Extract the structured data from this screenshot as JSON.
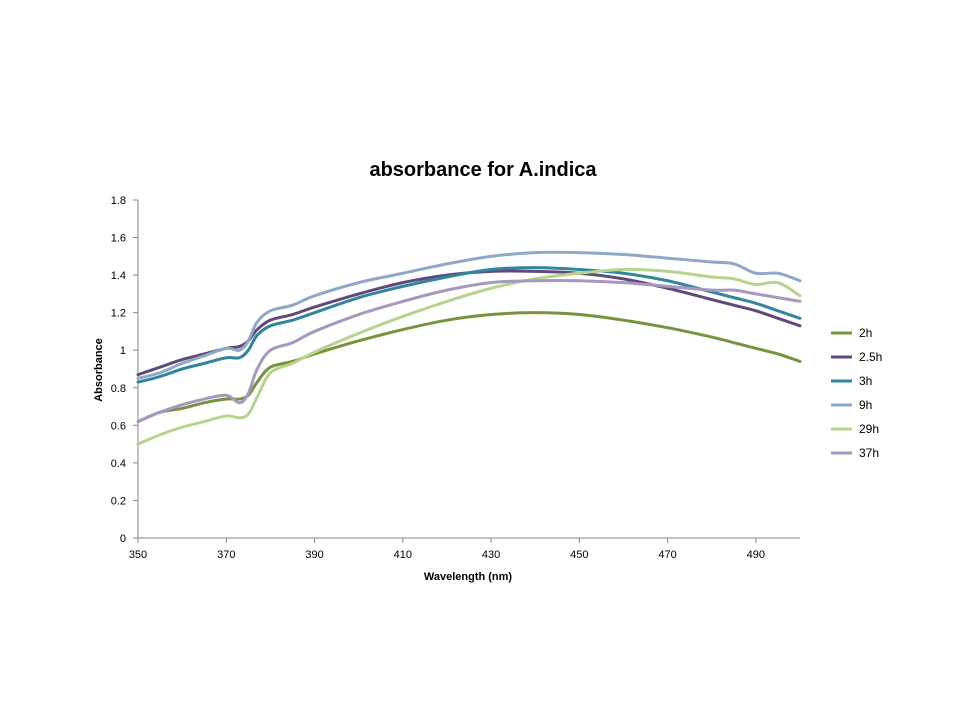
{
  "chart_data": {
    "type": "line",
    "title": "absorbance for A.indica",
    "xlabel": "Wavelength (nm)",
    "ylabel": "Absorbance",
    "xlim": [
      350,
      500
    ],
    "ylim": [
      0,
      1.8
    ],
    "x_ticks": [
      "350",
      "370",
      "390",
      "410",
      "430",
      "450",
      "470",
      "490"
    ],
    "y_ticks": [
      "0",
      "0.2",
      "0.4",
      "0.6",
      "0.8",
      "1",
      "1.2",
      "1.4",
      "1.6",
      "1.8"
    ],
    "grid": false,
    "legend_position": "right",
    "x": [
      350,
      355,
      360,
      365,
      370,
      373,
      375,
      377,
      380,
      385,
      390,
      400,
      410,
      420,
      430,
      440,
      450,
      460,
      470,
      480,
      485,
      490,
      495,
      500
    ],
    "series": [
      {
        "name": "2h",
        "color": "#77933C",
        "values": [
          0.62,
          0.67,
          0.69,
          0.72,
          0.74,
          0.74,
          0.76,
          0.83,
          0.91,
          0.94,
          0.98,
          1.05,
          1.11,
          1.16,
          1.19,
          1.2,
          1.19,
          1.16,
          1.12,
          1.07,
          1.04,
          1.01,
          0.98,
          0.94
        ]
      },
      {
        "name": "2.5h",
        "color": "#604A7B",
        "values": [
          0.87,
          0.91,
          0.95,
          0.98,
          1.01,
          1.02,
          1.05,
          1.11,
          1.16,
          1.19,
          1.23,
          1.3,
          1.36,
          1.4,
          1.42,
          1.42,
          1.41,
          1.38,
          1.33,
          1.27,
          1.24,
          1.21,
          1.17,
          1.13
        ]
      },
      {
        "name": "3h",
        "color": "#31859C",
        "values": [
          0.83,
          0.86,
          0.9,
          0.93,
          0.96,
          0.96,
          1.0,
          1.08,
          1.13,
          1.16,
          1.2,
          1.28,
          1.34,
          1.39,
          1.43,
          1.44,
          1.43,
          1.41,
          1.37,
          1.31,
          1.28,
          1.25,
          1.21,
          1.17
        ]
      },
      {
        "name": "9h",
        "color": "#8EA9C8",
        "values": [
          0.85,
          0.88,
          0.93,
          0.97,
          1.01,
          1.0,
          1.05,
          1.15,
          1.21,
          1.24,
          1.29,
          1.36,
          1.41,
          1.46,
          1.5,
          1.52,
          1.52,
          1.51,
          1.49,
          1.47,
          1.46,
          1.41,
          1.41,
          1.37
        ]
      },
      {
        "name": "29h",
        "color": "#B7D48F",
        "values": [
          0.5,
          0.55,
          0.59,
          0.62,
          0.65,
          0.64,
          0.66,
          0.75,
          0.88,
          0.93,
          0.99,
          1.09,
          1.18,
          1.26,
          1.33,
          1.38,
          1.41,
          1.43,
          1.42,
          1.39,
          1.38,
          1.35,
          1.36,
          1.29
        ]
      },
      {
        "name": "37h",
        "color": "#A698BF",
        "values": [
          0.62,
          0.67,
          0.71,
          0.74,
          0.76,
          0.72,
          0.77,
          0.9,
          1.0,
          1.04,
          1.1,
          1.19,
          1.26,
          1.32,
          1.36,
          1.37,
          1.37,
          1.36,
          1.34,
          1.32,
          1.32,
          1.3,
          1.28,
          1.26
        ]
      }
    ]
  }
}
